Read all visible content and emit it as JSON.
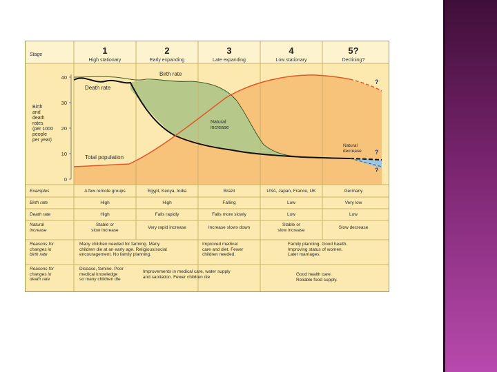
{
  "slide": {
    "accent_color": "#7a2570",
    "panel_bg": "#fbe9b0",
    "orange": "#f7c27a",
    "green": "#b7c98a",
    "red_line": "#e2562a"
  },
  "header": {
    "stage_label": "Stage",
    "stages": [
      {
        "num": "1",
        "name": "High stationary"
      },
      {
        "num": "2",
        "name": "Early expanding"
      },
      {
        "num": "3",
        "name": "Late expanding"
      },
      {
        "num": "4",
        "name": "Low stationary"
      },
      {
        "num": "5?",
        "name": "Declining?"
      }
    ]
  },
  "chart": {
    "y_label": [
      "Birth",
      "and",
      "death",
      "rates",
      "(per 1000",
      "people",
      "per year)"
    ],
    "y_ticks": [
      "40",
      "30",
      "20",
      "10",
      "0"
    ],
    "labels": {
      "birth_rate": "Birth rate",
      "death_rate": "Death rate",
      "natural_increase": [
        "Natural",
        "increase"
      ],
      "natural_decrease": [
        "Natural",
        "decrease"
      ],
      "total_population": "Total population"
    },
    "question_marks": [
      "?",
      "?",
      "?"
    ]
  },
  "rows": [
    {
      "label": [
        "Examples"
      ],
      "cells": [
        "A few remote groups",
        "Egypt, Kenya, India",
        "Brazil",
        "USA, Japan, France, UK",
        "Germany"
      ]
    },
    {
      "label": [
        "Birth rate"
      ],
      "cells": [
        "High",
        "High",
        "Falling",
        "Low",
        "Very low"
      ]
    },
    {
      "label": [
        "Death rate"
      ],
      "cells": [
        "High",
        "Falls rapidly",
        "Falls more slowly",
        "Low",
        "Low"
      ]
    },
    {
      "label": [
        "Natural",
        "increase"
      ],
      "cells": [
        [
          "Stable or",
          "slow increase"
        ],
        [
          "Very rapid increase"
        ],
        [
          "Increase slows down"
        ],
        [
          "Stable or",
          "slow increase"
        ],
        [
          "Slow decrease"
        ]
      ]
    }
  ],
  "reasons_birth": {
    "label": [
      "Reasons for",
      "changes in",
      "birth rate"
    ],
    "c1": [
      "Many children needed for farming. Many",
      "children die at an early age. Religious/social",
      "encouragement. No family planning."
    ],
    "c2": [
      "Improved medical",
      "care and diet. Fewer",
      "children needed."
    ],
    "c3": [
      "Family planning. Good health.",
      "Improving status of women.",
      "Later marriages."
    ]
  },
  "reasons_death": {
    "label": [
      "Reasons for",
      "changes in",
      "death rate"
    ],
    "c1": [
      "Disease, famine. Poor",
      "medical knowledge",
      "so many children die"
    ],
    "c2": [
      "Improvements in medical care, water supply",
      "and sanitation. Fewer children die"
    ],
    "c3": [
      "Good health care.",
      "Reliable food supply."
    ]
  }
}
